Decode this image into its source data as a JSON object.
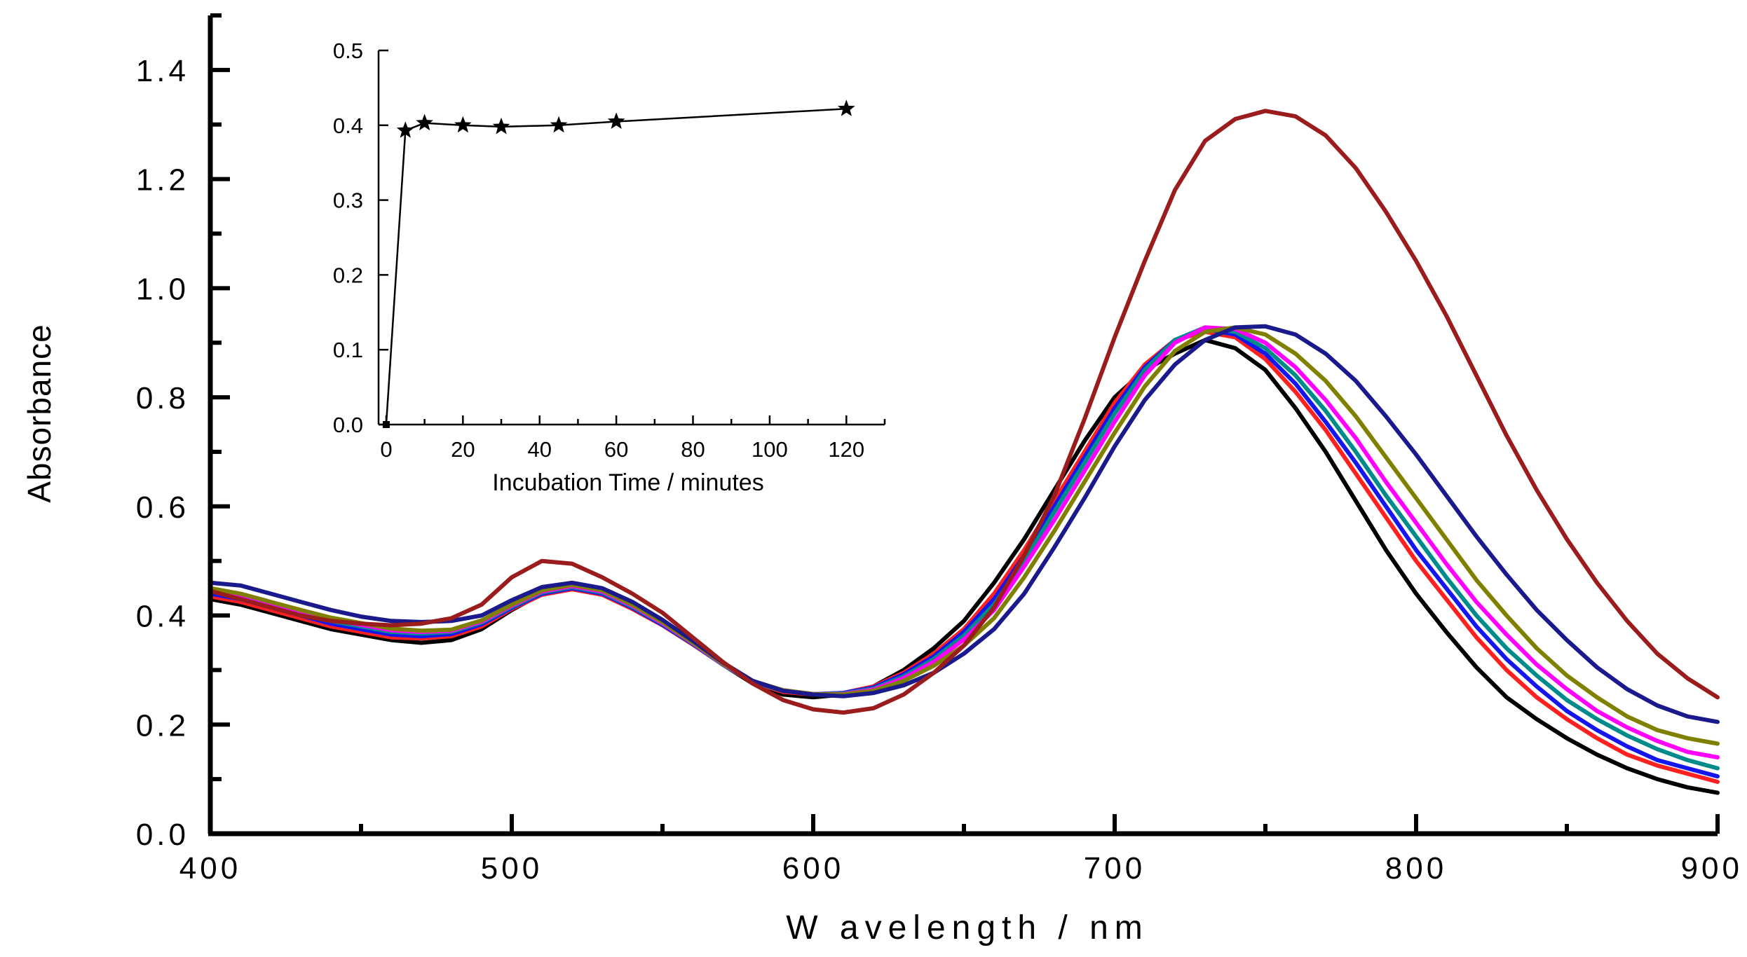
{
  "chart_data": [
    {
      "id": "main",
      "type": "line",
      "title": "",
      "xlabel": "W avelength  / nm",
      "ylabel": "Absorbance",
      "xlim": [
        400,
        900
      ],
      "ylim": [
        0,
        1.5
      ],
      "xticks": [
        400,
        500,
        600,
        700,
        800,
        900
      ],
      "xtick_labels": [
        "400",
        "500",
        "600",
        "700",
        "800",
        "900"
      ],
      "yticks": [
        0,
        0.2,
        0.4,
        0.6,
        0.8,
        1.0,
        1.2,
        1.4
      ],
      "ytick_labels": [
        "0.0",
        "0.2",
        "0.4",
        "0.6",
        "0.8",
        "1.0",
        "1.2",
        "1.4"
      ],
      "x": [
        400,
        410,
        420,
        430,
        440,
        450,
        460,
        470,
        480,
        490,
        500,
        510,
        520,
        530,
        540,
        550,
        560,
        570,
        580,
        590,
        600,
        610,
        620,
        630,
        640,
        650,
        660,
        670,
        680,
        690,
        700,
        710,
        720,
        730,
        740,
        750,
        760,
        770,
        780,
        790,
        800,
        810,
        820,
        830,
        840,
        850,
        860,
        870,
        880,
        890,
        900
      ],
      "series": [
        {
          "name": "black",
          "color": "#000000",
          "values": [
            0.43,
            0.42,
            0.405,
            0.39,
            0.375,
            0.365,
            0.355,
            0.35,
            0.355,
            0.375,
            0.41,
            0.44,
            0.45,
            0.44,
            0.415,
            0.385,
            0.35,
            0.31,
            0.275,
            0.255,
            0.25,
            0.255,
            0.27,
            0.3,
            0.34,
            0.39,
            0.46,
            0.54,
            0.63,
            0.72,
            0.8,
            0.85,
            0.88,
            0.905,
            0.89,
            0.85,
            0.78,
            0.7,
            0.61,
            0.52,
            0.44,
            0.37,
            0.305,
            0.25,
            0.21,
            0.175,
            0.145,
            0.12,
            0.1,
            0.085,
            0.075
          ]
        },
        {
          "name": "red",
          "color": "#ff2020",
          "values": [
            0.435,
            0.425,
            0.41,
            0.395,
            0.38,
            0.37,
            0.36,
            0.358,
            0.362,
            0.38,
            0.412,
            0.438,
            0.448,
            0.438,
            0.412,
            0.382,
            0.347,
            0.31,
            0.277,
            0.26,
            0.255,
            0.258,
            0.27,
            0.295,
            0.33,
            0.375,
            0.44,
            0.52,
            0.61,
            0.7,
            0.79,
            0.86,
            0.905,
            0.92,
            0.91,
            0.87,
            0.81,
            0.74,
            0.66,
            0.58,
            0.5,
            0.43,
            0.36,
            0.3,
            0.25,
            0.21,
            0.175,
            0.145,
            0.125,
            0.11,
            0.095
          ]
        },
        {
          "name": "blue",
          "color": "#1515ee",
          "values": [
            0.44,
            0.43,
            0.415,
            0.4,
            0.385,
            0.375,
            0.365,
            0.362,
            0.366,
            0.384,
            0.414,
            0.44,
            0.45,
            0.44,
            0.414,
            0.383,
            0.348,
            0.31,
            0.278,
            0.262,
            0.256,
            0.258,
            0.268,
            0.292,
            0.325,
            0.37,
            0.43,
            0.51,
            0.6,
            0.69,
            0.78,
            0.855,
            0.905,
            0.925,
            0.915,
            0.88,
            0.825,
            0.755,
            0.68,
            0.6,
            0.52,
            0.45,
            0.38,
            0.32,
            0.27,
            0.225,
            0.19,
            0.16,
            0.135,
            0.12,
            0.105
          ]
        },
        {
          "name": "teal",
          "color": "#008b8b",
          "values": [
            0.445,
            0.435,
            0.42,
            0.405,
            0.39,
            0.38,
            0.37,
            0.367,
            0.37,
            0.387,
            0.416,
            0.442,
            0.452,
            0.442,
            0.416,
            0.385,
            0.349,
            0.31,
            0.278,
            0.262,
            0.256,
            0.257,
            0.266,
            0.288,
            0.32,
            0.363,
            0.42,
            0.5,
            0.59,
            0.68,
            0.77,
            0.85,
            0.905,
            0.928,
            0.92,
            0.89,
            0.84,
            0.775,
            0.7,
            0.62,
            0.545,
            0.47,
            0.4,
            0.34,
            0.29,
            0.245,
            0.21,
            0.18,
            0.155,
            0.135,
            0.12
          ]
        },
        {
          "name": "magenta",
          "color": "#ff00ff",
          "values": [
            0.448,
            0.438,
            0.423,
            0.408,
            0.393,
            0.383,
            0.373,
            0.37,
            0.372,
            0.389,
            0.418,
            0.444,
            0.454,
            0.444,
            0.418,
            0.386,
            0.35,
            0.311,
            0.279,
            0.263,
            0.256,
            0.256,
            0.264,
            0.285,
            0.315,
            0.356,
            0.41,
            0.49,
            0.575,
            0.665,
            0.755,
            0.84,
            0.9,
            0.928,
            0.925,
            0.9,
            0.855,
            0.795,
            0.725,
            0.645,
            0.57,
            0.495,
            0.425,
            0.365,
            0.31,
            0.265,
            0.225,
            0.195,
            0.17,
            0.15,
            0.14
          ]
        },
        {
          "name": "olive",
          "color": "#808000",
          "values": [
            0.45,
            0.44,
            0.425,
            0.41,
            0.396,
            0.386,
            0.376,
            0.372,
            0.374,
            0.391,
            0.42,
            0.446,
            0.456,
            0.446,
            0.42,
            0.388,
            0.351,
            0.312,
            0.28,
            0.263,
            0.256,
            0.255,
            0.262,
            0.28,
            0.308,
            0.345,
            0.395,
            0.47,
            0.555,
            0.645,
            0.735,
            0.82,
            0.885,
            0.92,
            0.928,
            0.915,
            0.88,
            0.83,
            0.765,
            0.69,
            0.615,
            0.54,
            0.465,
            0.4,
            0.34,
            0.29,
            0.25,
            0.215,
            0.19,
            0.175,
            0.165
          ]
        },
        {
          "name": "navy",
          "color": "#1a1a8c",
          "values": [
            0.46,
            0.455,
            0.44,
            0.425,
            0.41,
            0.398,
            0.39,
            0.388,
            0.39,
            0.4,
            0.428,
            0.452,
            0.46,
            0.45,
            0.425,
            0.392,
            0.354,
            0.314,
            0.28,
            0.262,
            0.255,
            0.252,
            0.258,
            0.272,
            0.295,
            0.33,
            0.375,
            0.44,
            0.525,
            0.615,
            0.71,
            0.795,
            0.86,
            0.905,
            0.928,
            0.93,
            0.915,
            0.88,
            0.83,
            0.765,
            0.695,
            0.62,
            0.545,
            0.475,
            0.41,
            0.355,
            0.305,
            0.265,
            0.235,
            0.215,
            0.205
          ]
        },
        {
          "name": "dark red",
          "color": "#9b1c1c",
          "values": [
            0.445,
            0.43,
            0.415,
            0.4,
            0.39,
            0.385,
            0.382,
            0.385,
            0.395,
            0.42,
            0.47,
            0.5,
            0.495,
            0.47,
            0.44,
            0.405,
            0.36,
            0.315,
            0.275,
            0.245,
            0.228,
            0.222,
            0.23,
            0.255,
            0.295,
            0.345,
            0.415,
            0.51,
            0.62,
            0.76,
            0.91,
            1.05,
            1.18,
            1.27,
            1.31,
            1.325,
            1.315,
            1.28,
            1.22,
            1.14,
            1.05,
            0.95,
            0.84,
            0.73,
            0.63,
            0.54,
            0.46,
            0.39,
            0.33,
            0.285,
            0.25
          ]
        }
      ]
    },
    {
      "id": "inset",
      "type": "line",
      "title": "",
      "xlabel": "Incubation Time / minutes",
      "ylabel": "",
      "xlim": [
        -2,
        130
      ],
      "ylim": [
        0,
        0.5
      ],
      "xticks": [
        0,
        20,
        40,
        60,
        80,
        100,
        120
      ],
      "xtick_labels": [
        "0",
        "20",
        "40",
        "60",
        "80",
        "100",
        "120"
      ],
      "yticks": [
        0,
        0.1,
        0.2,
        0.3,
        0.4,
        0.5
      ],
      "ytick_labels": [
        "0.0",
        "0.1",
        "0.2",
        "0.3",
        "0.4",
        "0.5"
      ],
      "marker": "star",
      "x": [
        0,
        5,
        10,
        20,
        30,
        45,
        60,
        120
      ],
      "values": [
        0.0,
        0.393,
        0.403,
        0.4,
        0.398,
        0.4,
        0.405,
        0.422
      ]
    }
  ]
}
